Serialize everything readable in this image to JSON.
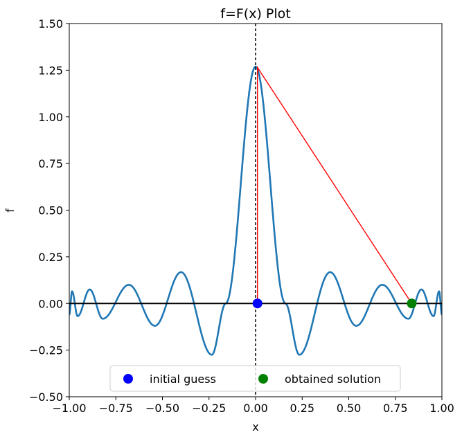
{
  "chart_data": {
    "type": "line",
    "title": "f=F(x) Plot",
    "xlabel": "x",
    "ylabel": "f",
    "xlim": [
      -1.0,
      1.0
    ],
    "ylim": [
      -0.5,
      1.5
    ],
    "x_ticks": [
      "−1.00",
      "−0.75",
      "−0.50",
      "−0.25",
      "0.00",
      "0.25",
      "0.50",
      "0.75",
      "1.00"
    ],
    "y_ticks": [
      "−0.50",
      "−0.25",
      "0.00",
      "0.25",
      "0.50",
      "0.75",
      "1.00",
      "1.25",
      "1.50"
    ],
    "grid": false,
    "series": [
      {
        "color": "#1f77b4",
        "function_points": [
          [
            -1.0,
            -0.06
          ],
          [
            -0.985,
            0.065
          ],
          [
            -0.955,
            -0.068
          ],
          [
            -0.89,
            0.075
          ],
          [
            -0.82,
            -0.082
          ],
          [
            -0.68,
            0.1
          ],
          [
            -0.54,
            -0.12
          ],
          [
            -0.4,
            0.168
          ],
          [
            -0.235,
            -0.275
          ],
          [
            -0.16,
            0.0
          ],
          [
            0.0,
            1.27
          ],
          [
            0.16,
            0.0
          ],
          [
            0.235,
            -0.275
          ],
          [
            0.4,
            0.168
          ],
          [
            0.54,
            -0.12
          ],
          [
            0.68,
            0.1
          ],
          [
            0.82,
            -0.082
          ],
          [
            0.89,
            0.075
          ],
          [
            0.955,
            -0.068
          ],
          [
            0.985,
            0.065
          ],
          [
            1.0,
            -0.06
          ]
        ]
      }
    ],
    "reference_lines": {
      "horizontal_y": 0.0,
      "vertical_x": 0.0
    },
    "newton_step": {
      "color": "#ff0000",
      "points": [
        [
          0.01,
          0.0
        ],
        [
          0.01,
          1.265
        ],
        [
          0.838,
          0.0
        ]
      ]
    },
    "markers": [
      {
        "name": "initial guess",
        "x": 0.01,
        "y": 0.0,
        "color": "#0000ff"
      },
      {
        "name": "obtained solution",
        "x": 0.838,
        "y": 0.0,
        "color": "#008000"
      }
    ],
    "legend_position": "lower-center"
  }
}
